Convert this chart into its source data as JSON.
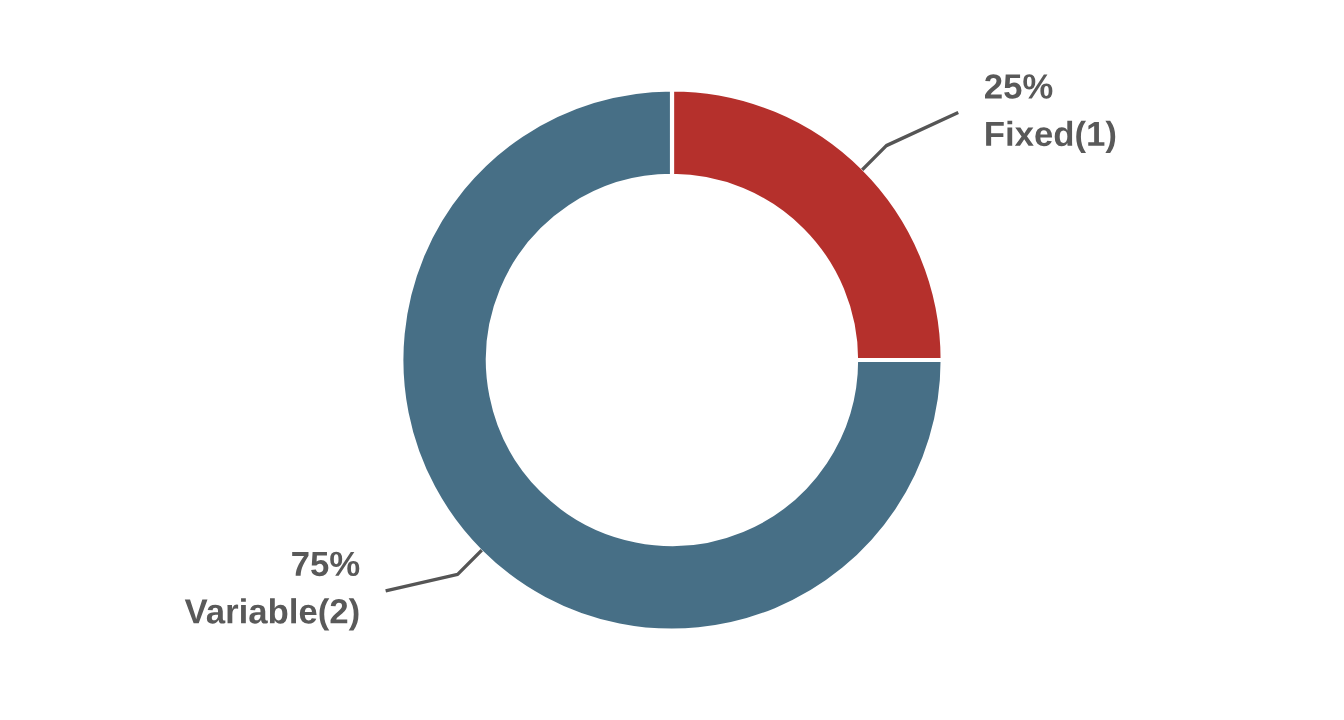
{
  "chart_data": {
    "type": "donut",
    "categories": [
      "Fixed(1)",
      "Variable(2)"
    ],
    "values": [
      25,
      75
    ],
    "colors": [
      "#b5302c",
      "#476f86"
    ],
    "value_labels": [
      "25%",
      "75%"
    ]
  }
}
